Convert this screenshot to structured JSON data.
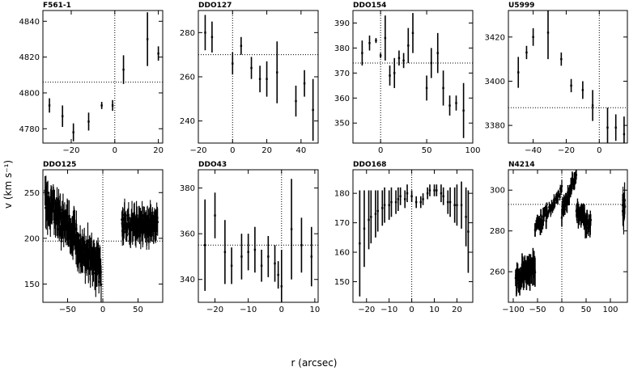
{
  "figure": {
    "ylabel": "v (km s⁻¹)",
    "xlabel": "r (arcsec)"
  },
  "chart_data": [
    {
      "type": "scatter",
      "title": "F561-1",
      "xlim": [
        -33,
        22
      ],
      "ylim": [
        4772,
        4846
      ],
      "xticks": [
        -20,
        0,
        20
      ],
      "yticks": [
        4780,
        4800,
        4820,
        4840
      ],
      "hline": 4806,
      "vline": 0,
      "points": [
        [
          -30,
          4793,
          4
        ],
        [
          -24,
          4787,
          6
        ],
        [
          -19,
          4778,
          5
        ],
        [
          -12,
          4784,
          5
        ],
        [
          -6,
          4793,
          2
        ],
        [
          -1,
          4793,
          3
        ],
        [
          4,
          4813,
          8
        ],
        [
          15,
          4830,
          15
        ],
        [
          20,
          4822,
          4
        ]
      ]
    },
    {
      "type": "scatter",
      "title": "DDO127",
      "xlim": [
        -20,
        50
      ],
      "ylim": [
        230,
        290
      ],
      "xticks": [
        -20,
        0,
        20,
        40
      ],
      "yticks": [
        240,
        260,
        280
      ],
      "hline": 270,
      "vline": 0,
      "points": [
        [
          -16,
          280,
          8
        ],
        [
          -12,
          278,
          7
        ],
        [
          0,
          266,
          5
        ],
        [
          5,
          274,
          4
        ],
        [
          11,
          264,
          5
        ],
        [
          16,
          259,
          6
        ],
        [
          20,
          259,
          8
        ],
        [
          26,
          262,
          14
        ],
        [
          37,
          249,
          7
        ],
        [
          42,
          257,
          6
        ],
        [
          47,
          245,
          14
        ]
      ]
    },
    {
      "type": "scatter",
      "title": "DDO154",
      "xlim": [
        -30,
        100
      ],
      "ylim": [
        342,
        395
      ],
      "xticks": [
        0,
        50,
        100
      ],
      "yticks": [
        350,
        360,
        370,
        380,
        390
      ],
      "hline": 374,
      "vline": 0,
      "points": [
        [
          -20,
          378,
          5
        ],
        [
          -12,
          382,
          3
        ],
        [
          -5,
          383,
          1
        ],
        [
          0,
          377,
          1
        ],
        [
          5,
          384,
          9
        ],
        [
          10,
          369,
          4
        ],
        [
          15,
          370,
          6
        ],
        [
          20,
          376,
          3
        ],
        [
          25,
          375,
          3
        ],
        [
          30,
          381,
          7
        ],
        [
          35,
          386,
          8
        ],
        [
          50,
          364,
          5
        ],
        [
          55,
          374,
          6
        ],
        [
          62,
          378,
          8
        ],
        [
          68,
          364,
          7
        ],
        [
          75,
          357,
          4
        ],
        [
          82,
          358,
          3
        ],
        [
          90,
          355,
          11
        ]
      ]
    },
    {
      "type": "scatter",
      "title": "U5999",
      "xlim": [
        -55,
        17
      ],
      "ylim": [
        3372,
        3432
      ],
      "xticks": [
        -40,
        -20,
        0
      ],
      "yticks": [
        3380,
        3400,
        3420
      ],
      "hline": 3388,
      "vline": 0,
      "points": [
        [
          -49,
          3404,
          7
        ],
        [
          -44,
          3413,
          3
        ],
        [
          -40,
          3420,
          4
        ],
        [
          -31,
          3422,
          12
        ],
        [
          -23,
          3410,
          3
        ],
        [
          -17,
          3398,
          3
        ],
        [
          -10,
          3396,
          4
        ],
        [
          -4,
          3389,
          7
        ],
        [
          5,
          3379,
          9
        ],
        [
          10,
          3379,
          6
        ],
        [
          15,
          3376,
          8
        ]
      ]
    },
    {
      "type": "line",
      "title": "DDO125",
      "xlim": [
        -85,
        85
      ],
      "ylim": [
        130,
        275
      ],
      "xticks": [
        -50,
        0,
        50
      ],
      "yticks": [
        150,
        200,
        250
      ],
      "hline": 197,
      "vline": 0,
      "segments": [
        [
          -82,
          -2,
          202,
          15,
          15,
          -1,
          0.45,
          1.15
        ],
        [
          27,
          78,
          215,
          12,
          12,
          0,
          0.4,
          1.1
        ]
      ]
    },
    {
      "type": "scatter",
      "title": "DDO43",
      "xlim": [
        -25,
        11
      ],
      "ylim": [
        330,
        388
      ],
      "xticks": [
        -20,
        -10,
        0,
        10
      ],
      "yticks": [
        340,
        360,
        380
      ],
      "hline": 355,
      "vline": 0,
      "points": [
        [
          -23,
          355,
          20
        ],
        [
          -20,
          368,
          10
        ],
        [
          -17,
          352,
          14
        ],
        [
          -15,
          346,
          8
        ],
        [
          -12,
          350,
          10
        ],
        [
          -10,
          352,
          8
        ],
        [
          -8,
          353,
          10
        ],
        [
          -6,
          346,
          7
        ],
        [
          -4,
          350,
          9
        ],
        [
          -2,
          347,
          8
        ],
        [
          -1,
          342,
          6
        ],
        [
          0,
          337,
          16
        ],
        [
          3,
          362,
          22
        ],
        [
          6,
          355,
          12
        ],
        [
          9,
          350,
          13
        ]
      ]
    },
    {
      "type": "scatter",
      "title": "DDO168",
      "xlim": [
        -26,
        27
      ],
      "ylim": [
        143,
        188
      ],
      "xticks": [
        -20,
        -10,
        0,
        10,
        20
      ],
      "yticks": [
        150,
        160,
        170,
        180
      ],
      "hline": null,
      "vline": 0,
      "points": [
        [
          -23,
          163,
          18
        ],
        [
          -21,
          168,
          13
        ],
        [
          -19,
          171,
          10
        ],
        [
          -18,
          172,
          9
        ],
        [
          -16,
          173,
          8
        ],
        [
          -15,
          174,
          7
        ],
        [
          -13,
          175,
          6
        ],
        [
          -12,
          176,
          6
        ],
        [
          -10,
          176,
          5
        ],
        [
          -9,
          177,
          5
        ],
        [
          -7,
          177,
          4
        ],
        [
          -6,
          178,
          4
        ],
        [
          -5,
          179,
          3
        ],
        [
          -3,
          178,
          3
        ],
        [
          -2,
          180,
          3
        ],
        [
          0,
          179,
          2
        ],
        [
          2,
          177,
          2
        ],
        [
          4,
          177,
          2
        ],
        [
          5,
          178,
          2
        ],
        [
          7,
          180,
          2
        ],
        [
          8,
          181,
          2
        ],
        [
          10,
          181,
          2
        ],
        [
          11,
          181,
          2
        ],
        [
          13,
          180,
          3
        ],
        [
          14,
          179,
          3
        ],
        [
          16,
          177,
          4
        ],
        [
          17,
          177,
          5
        ],
        [
          19,
          176,
          6
        ],
        [
          20,
          176,
          7
        ],
        [
          22,
          176,
          8
        ],
        [
          24,
          172,
          10
        ],
        [
          25,
          167,
          14
        ]
      ]
    },
    {
      "type": "line",
      "title": "N4214",
      "xlim": [
        -110,
        135
      ],
      "ylim": [
        245,
        310
      ],
      "xticks": [
        -100,
        -50,
        0,
        50,
        100
      ],
      "yticks": [
        260,
        280,
        300
      ],
      "hline": 293,
      "vline": 0,
      "segments": [
        [
          -95,
          -55,
          260,
          4,
          5,
          0.17,
          0.7,
          1.6
        ],
        [
          -55,
          -30,
          285,
          4,
          3,
          0.3,
          1.2,
          1.8
        ],
        [
          -30,
          0,
          294,
          2,
          2,
          0.4,
          1.0,
          1.3
        ],
        [
          0,
          30,
          298,
          3,
          3,
          0.6,
          0.9,
          1.6
        ],
        [
          30,
          60,
          287,
          4,
          4,
          -0.3,
          0.8,
          1.4
        ],
        [
          125,
          130,
          291,
          6,
          6,
          0,
          0.5,
          1.0
        ]
      ]
    }
  ]
}
